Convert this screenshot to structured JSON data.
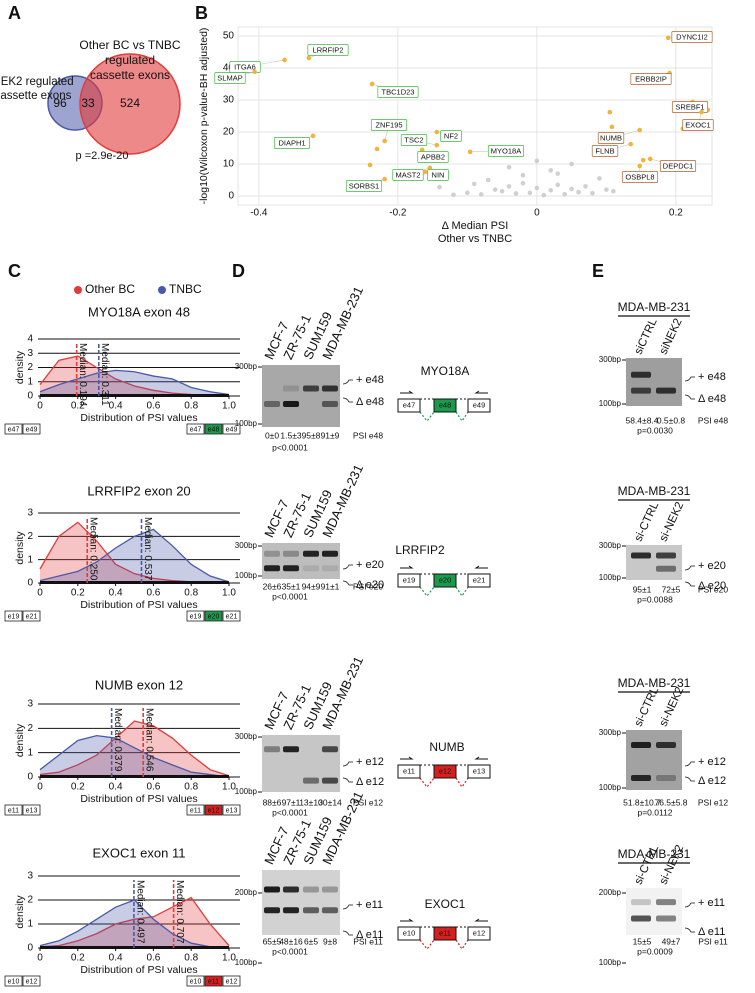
{
  "panel_a": {
    "letter": "A",
    "set1_label": [
      "NEK2 regulated",
      "cassette exons"
    ],
    "set2_label": [
      "Other BC vs TNBC",
      "regulated",
      "cassette exons"
    ],
    "only1": 96,
    "both": 33,
    "only2": 524,
    "p_label": "p =2.9e-20",
    "set1_color": "#4a5aa8",
    "set2_color": "#e23b3b"
  },
  "panel_b": {
    "letter": "B",
    "type": "scatter",
    "ylabel": "-log10(Wilcoxon p-value-BH adjusted)",
    "xlabel": [
      "Δ Median PSI",
      "Other vs TNBC"
    ],
    "xlim": [
      -0.43,
      0.252
    ],
    "ylim": [
      -2.8,
      52.8
    ],
    "xticks": [
      -0.4,
      -0.2,
      0,
      0.2
    ],
    "yticks": [
      0,
      10,
      20,
      30,
      40,
      50
    ],
    "grid": true,
    "highlight_color": "#f2b33d",
    "other_color": "#c4c4c4",
    "negative_label_color": "#3dbb3d",
    "positive_label_color": "#b0602a",
    "labeled": [
      {
        "name": "ITGA6",
        "x": -0.363,
        "y": 42.5
      },
      {
        "name": "LRRFIP2",
        "x": -0.328,
        "y": 43.1
      },
      {
        "name": "SLMAP",
        "x": -0.406,
        "y": 38.8
      },
      {
        "name": "TBC1D23",
        "x": -0.237,
        "y": 35
      },
      {
        "name": "DIAPH1",
        "x": -0.322,
        "y": 18.8
      },
      {
        "name": "ZNF195",
        "x": -0.219,
        "y": 17.2
      },
      {
        "name": "NF2",
        "x": -0.144,
        "y": 20
      },
      {
        "name": "TSC2",
        "x": -0.144,
        "y": 15.9
      },
      {
        "name": "APBB2",
        "x": -0.165,
        "y": 14.4
      },
      {
        "name": "MYO18A",
        "x": -0.096,
        "y": 13.8
      },
      {
        "name": "MAST2",
        "x": -0.154,
        "y": 8.8
      },
      {
        "name": "NIN",
        "x": -0.161,
        "y": 7.5
      },
      {
        "name": "SORBS1",
        "x": -0.219,
        "y": 5.3
      },
      {
        "name": "DYNC1I2",
        "x": 0.189,
        "y": 49.4
      },
      {
        "name": "ERBB2IP",
        "x": 0.191,
        "y": 38.4
      },
      {
        "name": "SREBF1",
        "x": 0.224,
        "y": 29.4
      },
      {
        "name": "EXOC1",
        "x": 0.237,
        "y": 26.2
      },
      {
        "name": "NUMB",
        "x": 0.148,
        "y": 20.6
      },
      {
        "name": "FLNB",
        "x": 0.135,
        "y": 16.2
      },
      {
        "name": "DEPDC1",
        "x": 0.163,
        "y": 11.6
      },
      {
        "name": "OSBPL8",
        "x": 0.148,
        "y": 9.4
      }
    ],
    "highlighted_x": [
      -0.23,
      -0.24,
      -0.155,
      0.105,
      0.108,
      0.153,
      0.246,
      0.21
    ],
    "highlighted_y": [
      14.7,
      9.7,
      11.3,
      26.2,
      21.6,
      11.2,
      26.9,
      21
    ],
    "other_x": [
      -0.1,
      -0.08,
      -0.06,
      -0.05,
      -0.04,
      -0.03,
      -0.02,
      -0.01,
      0,
      0.01,
      0.02,
      0.03,
      0.04,
      0.05,
      0.06,
      0.08,
      0.1,
      -0.12,
      -0.07,
      -0.02,
      0.02,
      0.07,
      0.09,
      -0.04,
      0,
      0.03,
      -0.09,
      0.05,
      0.11,
      -0.14
    ],
    "other_y": [
      1,
      0.5,
      2,
      1.5,
      3,
      0.8,
      4,
      1,
      2.5,
      0.3,
      1.8,
      3.5,
      0.6,
      2.2,
      1.2,
      0.9,
      2,
      0.4,
      5,
      6.5,
      8,
      3,
      5.5,
      9,
      11,
      7,
      3.8,
      10,
      1.5,
      2.8
    ]
  },
  "panel_c": {
    "letter": "C",
    "type": "area",
    "groups": [
      {
        "name": "Other BC",
        "color": "#e23b3b"
      },
      {
        "name": "TNBC",
        "color": "#4a5aa8"
      }
    ],
    "x": [
      0,
      0.1,
      0.2,
      0.3,
      0.4,
      0.5,
      0.6,
      0.7,
      0.8,
      0.9,
      1
    ],
    "xticks": [
      0,
      0.2,
      0.4,
      0.6,
      0.8,
      {
        "value": 1,
        "label": "1.0"
      }
    ],
    "xlabel": "Distribution of PSI values",
    "ylabel": "density",
    "plots": [
      {
        "title": "MYO18A exon 48",
        "ylim": [
          0,
          4
        ],
        "yticks": [
          0,
          1,
          2,
          3,
          4
        ],
        "density": [
          [
            0.8,
            2.5,
            2.8,
            2.0,
            1.2,
            0.7,
            0.4,
            0.2,
            0.1,
            0.05,
            0
          ],
          [
            0.3,
            0.8,
            1.2,
            1.6,
            1.8,
            1.7,
            1.4,
            1.2,
            0.6,
            0.3,
            0.1
          ]
        ],
        "medians": [
          {
            "label": "Median: 0.194",
            "value": 0.194,
            "group": 0
          },
          {
            "label": "Median: 0.311",
            "value": 0.311,
            "group": 1
          }
        ],
        "skip_exons": [
          "e47",
          "e49"
        ],
        "incl_exons": [
          "e47",
          "e48",
          "e49"
        ],
        "exon_color": "#1a9a4a"
      },
      {
        "title": "LRRFIP2 exon 20",
        "ylim": [
          0,
          3
        ],
        "yticks": [
          0,
          1,
          2,
          3
        ],
        "density": [
          [
            0.6,
            2.0,
            2.6,
            1.8,
            0.8,
            0.4,
            0.2,
            0.1,
            0.05,
            0,
            0
          ],
          [
            0.1,
            0.3,
            0.5,
            0.9,
            1.5,
            2.0,
            2.3,
            1.6,
            0.8,
            0.3,
            0.05
          ]
        ],
        "medians": [
          {
            "label": "Median: 0.250",
            "value": 0.25,
            "group": 0
          },
          {
            "label": "Median: 0.537",
            "value": 0.537,
            "group": 1
          }
        ],
        "skip_exons": [
          "e19",
          "e21"
        ],
        "incl_exons": [
          "e19",
          "e20",
          "e21"
        ],
        "exon_color": "#1a9a4a"
      },
      {
        "title": "NUMB exon 12",
        "ylim": [
          0,
          3
        ],
        "yticks": [
          0,
          1,
          2,
          3
        ],
        "density": [
          [
            0.1,
            0.2,
            0.5,
            0.9,
            1.6,
            2.3,
            2.1,
            1.6,
            0.9,
            0.3,
            0.05
          ],
          [
            0.3,
            0.9,
            1.5,
            1.7,
            1.6,
            1.2,
            0.8,
            0.5,
            0.2,
            0.1,
            0
          ]
        ],
        "medians": [
          {
            "label": "Median: 0.379",
            "value": 0.379,
            "group": 1
          },
          {
            "label": "Median: 0.546",
            "value": 0.546,
            "group": 0
          }
        ],
        "skip_exons": [
          "e11",
          "e13"
        ],
        "incl_exons": [
          "e11",
          "e12",
          "e13"
        ],
        "exon_color": "#d62020"
      },
      {
        "title": "EXOC1 exon 11",
        "ylim": [
          0,
          3
        ],
        "yticks": [
          0,
          1,
          2,
          3
        ],
        "density": [
          [
            0.05,
            0.1,
            0.3,
            0.6,
            1.0,
            1.2,
            1.3,
            1.7,
            2.1,
            1.0,
            0.1
          ],
          [
            0.1,
            0.3,
            0.7,
            1.2,
            1.7,
            2.0,
            1.2,
            0.6,
            0.2,
            0.05,
            0
          ]
        ],
        "medians": [
          {
            "label": "Median: 0.497",
            "value": 0.497,
            "group": 1
          },
          {
            "label": "Median: 0.707",
            "value": 0.707,
            "group": 0
          }
        ],
        "skip_exons": [
          "e10",
          "e12"
        ],
        "incl_exons": [
          "e10",
          "e11",
          "e12"
        ],
        "exon_color": "#d62020"
      }
    ]
  },
  "panel_d": {
    "letter": "D",
    "cell_lines": [
      {
        "name": "MCF-7",
        "color": "#e23b3b"
      },
      {
        "name": "ZR-75-1",
        "color": "#e23b3b"
      },
      {
        "name": "SUM159",
        "color": "#3a3aa0"
      },
      {
        "name": "MDA-MB-231",
        "color": "#3a3aa0"
      }
    ],
    "gels": [
      {
        "gene": "MYO18A",
        "ladder": [
          "300bp",
          "100bp"
        ],
        "bands": [
          "+ e48",
          "Δ e48"
        ],
        "psi": [
          "0±0",
          "1.5±3",
          "95±8",
          "91±9"
        ],
        "psi_label": "PSI e48",
        "p": "p<0.0001",
        "exons": [
          "e47",
          "e48",
          "e49"
        ],
        "exon_color": "#1a9a4a"
      },
      {
        "gene": "LRRFIP2",
        "ladder": [
          "300bp",
          "100bp"
        ],
        "bands": [
          "+ e20",
          "Δ e20"
        ],
        "psi": [
          "26±6",
          "35±1",
          "94±9",
          "91±1"
        ],
        "psi_label": "PSI e20",
        "p": "p<0.0001",
        "exons": [
          "e19",
          "e20",
          "e21"
        ],
        "exon_color": "#1a9a4a"
      },
      {
        "gene": "NUMB",
        "ladder": [
          "300bp",
          "100bp"
        ],
        "bands": [
          "+ e12",
          "Δ e12"
        ],
        "psi": [
          "88±6",
          "97±1",
          "13±10",
          "30±14"
        ],
        "psi_label": "PSI e12",
        "p": "p<0.0001",
        "exons": [
          "e11",
          "e12",
          "e13"
        ],
        "exon_color": "#d62020"
      },
      {
        "gene": "EXOC1",
        "ladder": [
          "200bp",
          "100bp"
        ],
        "bands": [
          "+ e11",
          "Δ e11"
        ],
        "psi": [
          "65±5",
          "48±16",
          "6±5",
          "9±8"
        ],
        "psi_label": "PSI e11",
        "p": "p<0.0001",
        "exons": [
          "e10",
          "e11",
          "e12"
        ],
        "exon_color": "#d62020"
      }
    ]
  },
  "panel_e": {
    "letter": "E",
    "gels": [
      {
        "header": "MDA-MB-231",
        "lanes": [
          "siCTRL",
          "siNEK2"
        ],
        "ladder": [
          "300bp",
          "100bp"
        ],
        "bands": [
          "+ e48",
          "Δ e48"
        ],
        "psi": [
          "58.4±8.4",
          "0.5±0.8"
        ],
        "psi_label": "PSI e48",
        "p": "p=0.0030"
      },
      {
        "header": "MDA-MB-231",
        "lanes": [
          "si-CTRL",
          "si-NEK2"
        ],
        "ladder": [
          "300bp",
          "100bp"
        ],
        "bands": [
          "+ e20",
          "Δ e20"
        ],
        "psi": [
          "95±1",
          "72±5"
        ],
        "psi_label": "PSI e20",
        "p": "p=0.0088"
      },
      {
        "header": "MDA-MB-231",
        "lanes": [
          "si-CTRL",
          "si-NEK2"
        ],
        "ladder": [
          "300bp",
          "100bp"
        ],
        "bands": [
          "+ e12",
          "Δ e12"
        ],
        "psi": [
          "51.8±10.7",
          "76.5±5.8"
        ],
        "psi_label": "PSI e12",
        "p": "p=0.0112"
      },
      {
        "header": "MDA-MB-231",
        "lanes": [
          "si-CTRL",
          "si-NEK2"
        ],
        "ladder": [
          "200bp",
          "100bp"
        ],
        "bands": [
          "+ e11",
          "Δ e11"
        ],
        "psi": [
          "15±5",
          "49±7"
        ],
        "psi_label": "PSI e11",
        "p": "p=0.0009"
      }
    ]
  }
}
